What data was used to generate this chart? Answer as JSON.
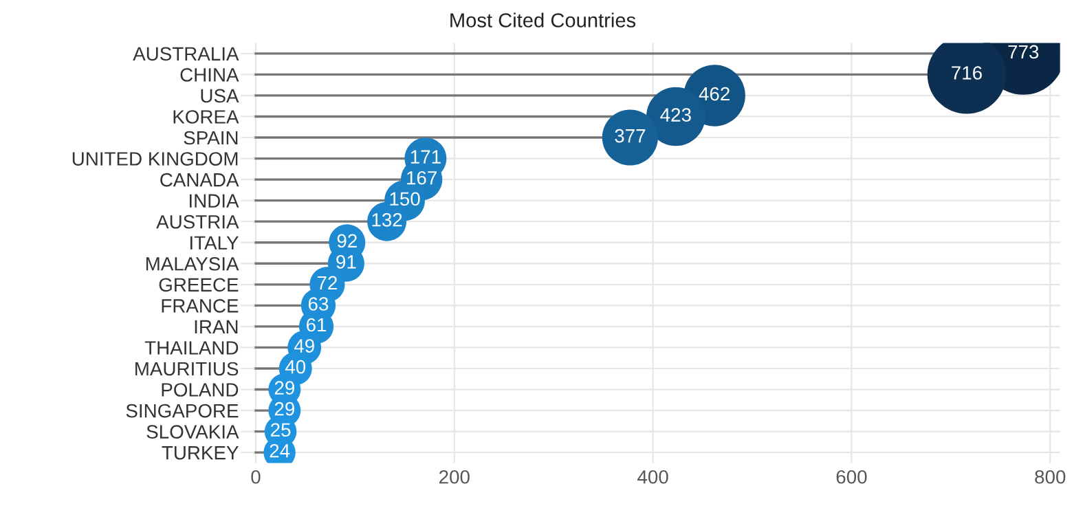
{
  "chart_data": {
    "type": "lollipop",
    "title": "Most Cited Countries",
    "orientation": "horizontal",
    "categories": [
      "AUSTRALIA",
      "CHINA",
      "USA",
      "KOREA",
      "SPAIN",
      "UNITED KINGDOM",
      "CANADA",
      "INDIA",
      "AUSTRIA",
      "ITALY",
      "MALAYSIA",
      "GREECE",
      "FRANCE",
      "IRAN",
      "THAILAND",
      "MAURITIUS",
      "POLAND",
      "SINGAPORE",
      "SLOVAKIA",
      "TURKEY"
    ],
    "values": [
      773,
      716,
      462,
      423,
      377,
      171,
      167,
      150,
      132,
      92,
      91,
      72,
      63,
      61,
      49,
      40,
      29,
      29,
      25,
      24
    ],
    "colors": [
      "#0a2746",
      "#0c2f52",
      "#135486",
      "#145a8e",
      "#156198",
      "#1b7fc2",
      "#1b7fc3",
      "#1c82c6",
      "#1c84ca",
      "#1d8ad2",
      "#1d8ad2",
      "#1e8dd6",
      "#1e8ed8",
      "#1e8ed8",
      "#1e90db",
      "#1f92dd",
      "#1f93df",
      "#1f93df",
      "#1f94e0",
      "#1f94e0"
    ],
    "sizes": [
      1,
      0.909,
      0.556,
      0.509,
      0.457,
      0.257,
      0.253,
      0.24,
      0.225,
      0.195,
      0.195,
      0.181,
      0.175,
      0.174,
      0.165,
      0.159,
      0.152,
      0.152,
      0.15,
      0.149
    ],
    "xlim": [
      -15,
      810
    ],
    "xticks": [
      0,
      200,
      400,
      600,
      800
    ],
    "grid": true,
    "data_labels": true
  }
}
